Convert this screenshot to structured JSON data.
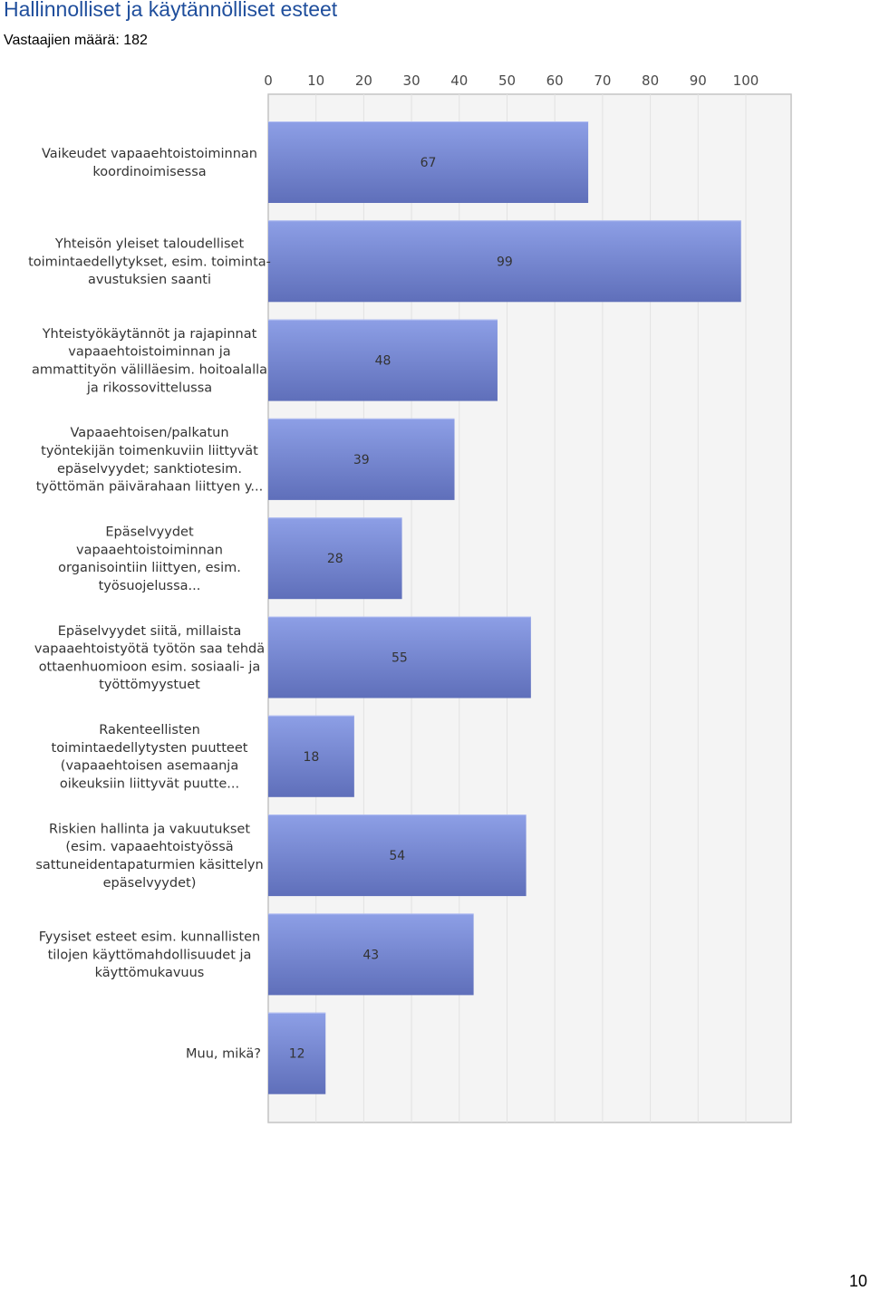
{
  "page": {
    "title": "Hallinnolliset ja käytännölliset esteet",
    "subtitle": "Vastaajien määrä: 182",
    "page_number": "10"
  },
  "colors": {
    "bar_top": "#8d9fe6",
    "bar_bottom": "#5f6fba",
    "plot_bg": "#f4f4f4",
    "gridline": "#e2e2e2",
    "frame": "#c4c4c4",
    "title": "#1f4e9c"
  },
  "chart_data": {
    "type": "bar",
    "orientation": "horizontal",
    "title": "",
    "xlabel": "",
    "ylabel": "",
    "xlim": [
      0,
      100
    ],
    "ticks": [
      0,
      10,
      20,
      30,
      40,
      50,
      60,
      70,
      80,
      90,
      100
    ],
    "grid": true,
    "categories": [
      [
        "Vaikeudet vapaaehtoistoiminnan",
        "koordinoimisessa"
      ],
      [
        "Yhteisön yleiset taloudelliset",
        "toimintaedellytykset, esim. toiminta-",
        "avustuksien saanti"
      ],
      [
        "Yhteistyökäytännöt ja rajapinnat",
        "vapaaehtoistoiminnan ja",
        "ammattityön välilläesim. hoitoalalla",
        "ja rikossovittelussa"
      ],
      [
        "Vapaaehtoisen/palkatun",
        "työntekijän toimenkuviin liittyvät",
        "epäselvyydet; sanktiotesim.",
        "työttömän päivärahaan liittyen y..."
      ],
      [
        "Epäselvyydet",
        "vapaaehtoistoiminnan",
        "organisointiin liittyen, esim.",
        "työsuojelussa..."
      ],
      [
        "Epäselvyydet siitä, millaista",
        "vapaaehtoistyötä työtön saa tehdä",
        "ottaenhuomioon esim. sosiaali- ja",
        "työttömyystuet"
      ],
      [
        "Rakenteellisten",
        "toimintaedellytysten puutteet",
        "(vapaaehtoisen asemaanja",
        "oikeuksiin liittyvät puutte..."
      ],
      [
        "Riskien hallinta ja vakuutukset",
        "(esim. vapaaehtoistyössä",
        "sattuneidentapaturmien käsittelyn",
        "epäselvyydet)"
      ],
      [
        "Fyysiset esteet esim. kunnallisten",
        "tilojen käyttömahdollisuudet ja",
        "käyttömukavuus"
      ],
      [
        "Muu, mikä?"
      ]
    ],
    "values": [
      67,
      99,
      48,
      39,
      28,
      55,
      18,
      54,
      43,
      12
    ]
  }
}
